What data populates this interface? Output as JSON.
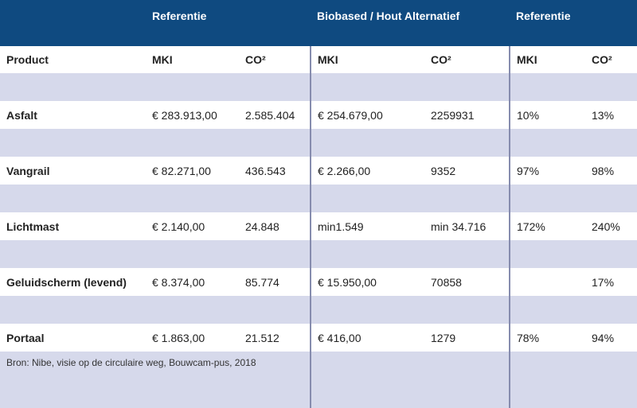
{
  "header": {
    "groups": [
      "Referentie",
      "Biobased / Hout Alternatief",
      "Referentie"
    ],
    "columns": [
      "Product",
      "MKI",
      "CO²",
      "MKI",
      "CO²",
      "MKI",
      "CO²"
    ]
  },
  "table": {
    "rows": [
      [
        "Asfalt",
        "€ 283.913,00",
        "2.585.404",
        "€ 254.679,00",
        "2259931",
        "10%",
        "13%"
      ],
      [
        "Vangrail",
        "€ 82.271,00",
        "436.543",
        "€ 2.266,00",
        "9352",
        "97%",
        "98%"
      ],
      [
        "Lichtmast",
        "€ 2.140,00",
        "24.848",
        "min1.549",
        "min 34.716",
        "172%",
        "240%"
      ],
      [
        "Geluidscherm (levend)",
        "€ 8.374,00",
        "85.774",
        "€ 15.950,00",
        "70858",
        null,
        "17%"
      ],
      [
        "Portaal",
        "€ 1.863,00",
        "21.512",
        "€ 416,00",
        "1279",
        "78%",
        "94%"
      ]
    ]
  },
  "source": "Bron: Nibe, visie op de circulaire weg, Bouwcam-pus, 2018"
}
